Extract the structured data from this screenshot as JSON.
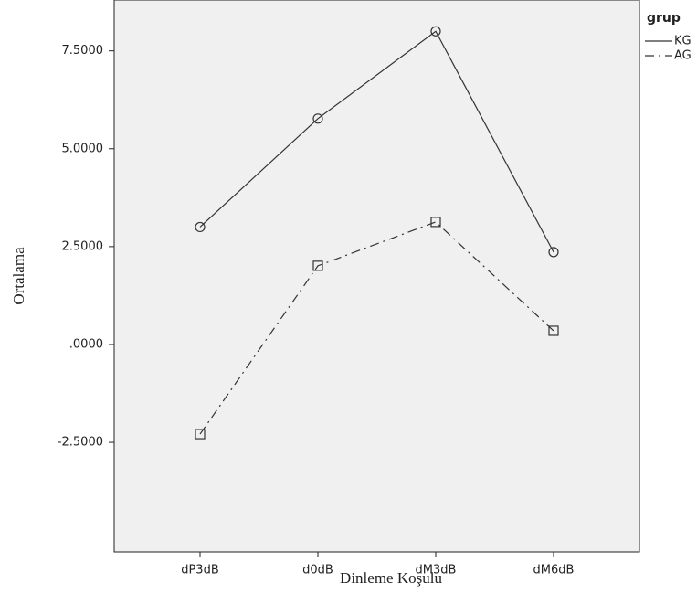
{
  "chart_data": {
    "type": "line",
    "y_label": "Ortalama",
    "x_label": "Dinleme Koşulu",
    "categories": [
      "dP3dB",
      "d0dB",
      "dM3dB",
      "dM6dB"
    ],
    "legend_title": "grup",
    "legend": "top-right",
    "series": [
      {
        "name": "KG",
        "color": "#333333",
        "dash": "solid",
        "marker": "circle",
        "values": [
          3.0,
          5.77,
          8.0,
          2.36
        ]
      },
      {
        "name": "AG",
        "color": "#333333",
        "dash": "dashdot",
        "marker": "square",
        "values": [
          -2.29,
          2.01,
          3.13,
          0.35
        ]
      }
    ],
    "ylim": [
      -5.3,
      8.8
    ],
    "yticks": [
      {
        "value": -2.5,
        "label": "-2.5000"
      },
      {
        "value": 0,
        "label": ".0000"
      },
      {
        "value": 2.5,
        "label": "2.5000"
      },
      {
        "value": 5.0,
        "label": "5.0000"
      },
      {
        "value": 7.5,
        "label": "7.5000"
      }
    ]
  }
}
